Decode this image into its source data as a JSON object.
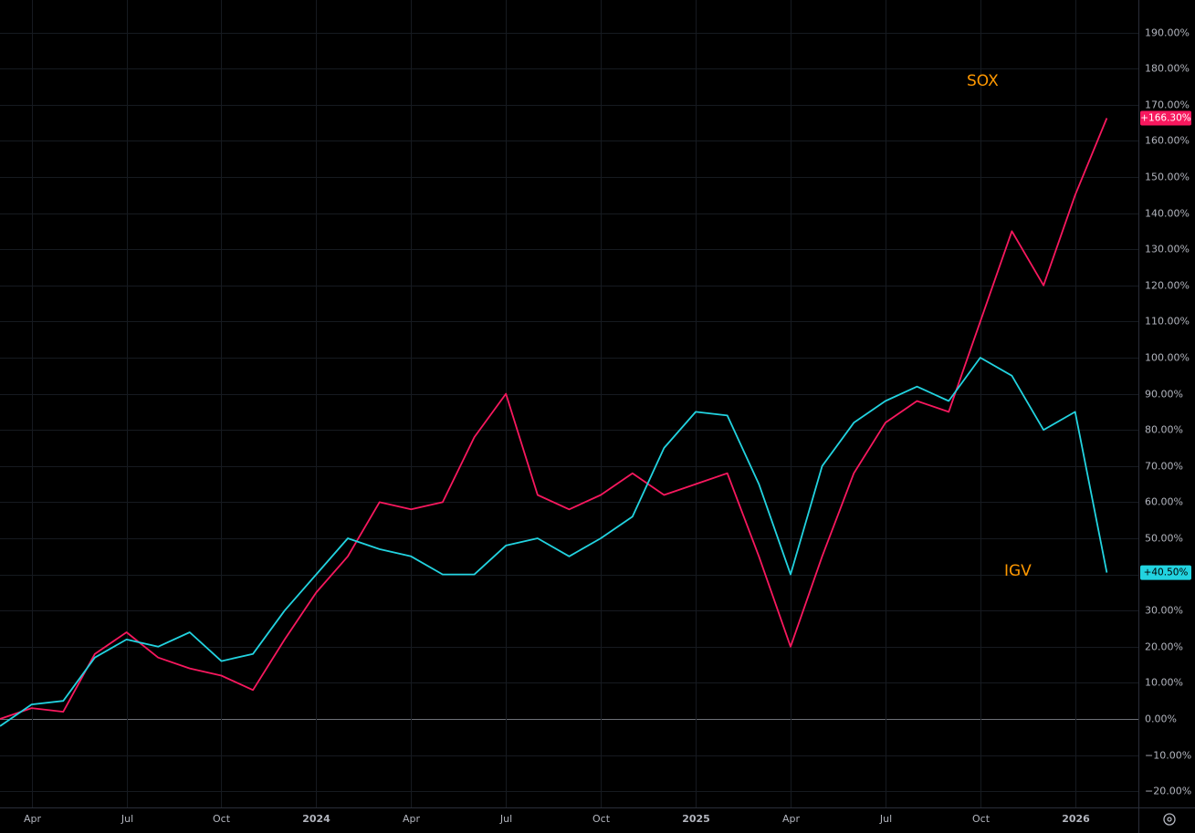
{
  "chart_data": {
    "type": "line",
    "x": [
      "2023-03",
      "2023-04",
      "2023-05",
      "2023-06",
      "2023-07",
      "2023-08",
      "2023-09",
      "2023-10",
      "2023-11",
      "2023-12",
      "2024-01",
      "2024-02",
      "2024-03",
      "2024-04",
      "2024-05",
      "2024-06",
      "2024-07",
      "2024-08",
      "2024-09",
      "2024-10",
      "2024-11",
      "2024-12",
      "2025-01",
      "2025-02",
      "2025-03",
      "2025-04",
      "2025-05",
      "2025-06",
      "2025-07",
      "2025-08",
      "2025-09",
      "2025-10",
      "2025-11",
      "2025-12",
      "2026-01",
      "2026-02"
    ],
    "series": [
      {
        "name": "SOX",
        "color": "#f7185e",
        "last_value_label": "+166.30%",
        "values": [
          0,
          3,
          2,
          18,
          24,
          17,
          14,
          12,
          8,
          22,
          35,
          45,
          60,
          58,
          60,
          78,
          90,
          62,
          58,
          62,
          68,
          62,
          65,
          68,
          45,
          20,
          45,
          68,
          82,
          88,
          85,
          110,
          135,
          120,
          145,
          166.3
        ]
      },
      {
        "name": "IGV",
        "color": "#22d3e0",
        "last_value_label": "+40.50%",
        "values": [
          -2,
          4,
          5,
          17,
          22,
          20,
          24,
          16,
          18,
          30,
          40,
          50,
          47,
          45,
          40,
          40,
          48,
          50,
          45,
          50,
          56,
          75,
          85,
          84,
          65,
          40,
          70,
          82,
          88,
          92,
          88,
          100,
          95,
          80,
          85,
          40.5
        ]
      }
    ],
    "xlim": [
      "2023-03",
      "2026-03"
    ],
    "xticks": [
      {
        "value": "2023-04",
        "label": "Apr"
      },
      {
        "value": "2023-07",
        "label": "Jul"
      },
      {
        "value": "2023-10",
        "label": "Oct"
      },
      {
        "value": "2024-01",
        "label": "2024"
      },
      {
        "value": "2024-04",
        "label": "Apr"
      },
      {
        "value": "2024-07",
        "label": "Jul"
      },
      {
        "value": "2024-10",
        "label": "Oct"
      },
      {
        "value": "2025-01",
        "label": "2025"
      },
      {
        "value": "2025-04",
        "label": "Apr"
      },
      {
        "value": "2025-07",
        "label": "Jul"
      },
      {
        "value": "2025-10",
        "label": "Oct"
      },
      {
        "value": "2026-01",
        "label": "2026"
      }
    ],
    "ylim": [
      -24.5,
      199
    ],
    "yticks": [
      {
        "value": -20,
        "label": "−20.00%"
      },
      {
        "value": -10,
        "label": "−10.00%"
      },
      {
        "value": 0,
        "label": "0.00%"
      },
      {
        "value": 10,
        "label": "10.00%"
      },
      {
        "value": 20,
        "label": "20.00%"
      },
      {
        "value": 30,
        "label": "30.00%"
      },
      {
        "value": 40,
        "label": "40.00%"
      },
      {
        "value": 50,
        "label": "50.00%"
      },
      {
        "value": 60,
        "label": "60.00%"
      },
      {
        "value": 70,
        "label": "70.00%"
      },
      {
        "value": 80,
        "label": "80.00%"
      },
      {
        "value": 90,
        "label": "90.00%"
      },
      {
        "value": 100,
        "label": "100.00%"
      },
      {
        "value": 110,
        "label": "110.00%"
      },
      {
        "value": 120,
        "label": "120.00%"
      },
      {
        "value": 130,
        "label": "130.00%"
      },
      {
        "value": 140,
        "label": "140.00%"
      },
      {
        "value": 150,
        "label": "150.00%"
      },
      {
        "value": 160,
        "label": "160.00%"
      },
      {
        "value": 170,
        "label": "170.00%"
      },
      {
        "value": 180,
        "label": "180.00%"
      },
      {
        "value": 190,
        "label": "190.00%"
      }
    ],
    "grid": true,
    "annotations": [
      "SOX",
      "IGV"
    ]
  }
}
